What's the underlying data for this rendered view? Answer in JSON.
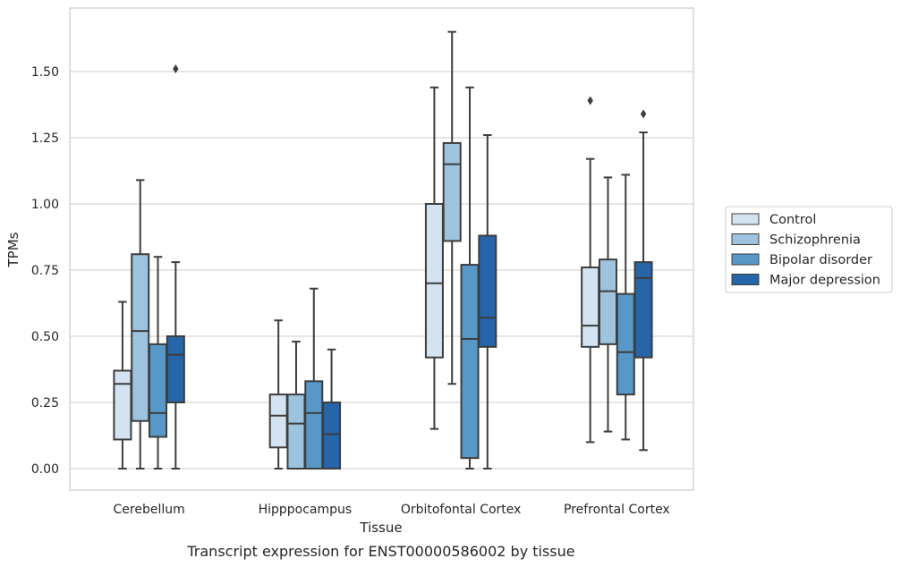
{
  "chart_data": {
    "type": "boxplot",
    "xlabel": "Tissue",
    "ylabel": "TPMs",
    "caption": "Transcript expression for ENST00000586002 by tissue",
    "ylim": [
      -0.08,
      1.75
    ],
    "yticks": [
      0.0,
      0.25,
      0.5,
      0.75,
      1.0,
      1.25,
      1.5
    ],
    "ytick_labels": [
      "0.00",
      "0.25",
      "0.50",
      "0.75",
      "1.00",
      "1.25",
      "1.50"
    ],
    "grid": "horizontal",
    "legend_placement": "right",
    "categories": [
      "Cerebellum",
      "Hipppocampus",
      "Orbitofontal Cortex",
      "Prefrontal Cortex"
    ],
    "series": [
      {
        "name": "Control",
        "color": "#d4e3f1",
        "boxes": [
          {
            "whislo": 0.0,
            "q1": 0.11,
            "med": 0.32,
            "q3": 0.37,
            "whishi": 0.63,
            "fliers": []
          },
          {
            "whislo": 0.0,
            "q1": 0.08,
            "med": 0.2,
            "q3": 0.28,
            "whishi": 0.56,
            "fliers": []
          },
          {
            "whislo": 0.15,
            "q1": 0.42,
            "med": 0.7,
            "q3": 1.0,
            "whishi": 1.44,
            "fliers": []
          },
          {
            "whislo": 0.1,
            "q1": 0.46,
            "med": 0.54,
            "q3": 0.76,
            "whishi": 1.17,
            "fliers": [
              1.39
            ]
          }
        ]
      },
      {
        "name": "Schizophrenia",
        "color": "#9dc3de",
        "boxes": [
          {
            "whislo": 0.0,
            "q1": 0.18,
            "med": 0.52,
            "q3": 0.81,
            "whishi": 1.09,
            "fliers": []
          },
          {
            "whislo": 0.0,
            "q1": 0.0,
            "med": 0.17,
            "q3": 0.28,
            "whishi": 0.48,
            "fliers": []
          },
          {
            "whislo": 0.32,
            "q1": 0.86,
            "med": 1.15,
            "q3": 1.23,
            "whishi": 1.65,
            "fliers": []
          },
          {
            "whislo": 0.14,
            "q1": 0.47,
            "med": 0.67,
            "q3": 0.79,
            "whishi": 1.1,
            "fliers": []
          }
        ]
      },
      {
        "name": "Bipolar disorder",
        "color": "#5898c8",
        "boxes": [
          {
            "whislo": 0.0,
            "q1": 0.12,
            "med": 0.21,
            "q3": 0.47,
            "whishi": 0.8,
            "fliers": []
          },
          {
            "whislo": 0.0,
            "q1": 0.0,
            "med": 0.21,
            "q3": 0.33,
            "whishi": 0.68,
            "fliers": []
          },
          {
            "whislo": 0.0,
            "q1": 0.04,
            "med": 0.49,
            "q3": 0.77,
            "whishi": 1.44,
            "fliers": []
          },
          {
            "whislo": 0.11,
            "q1": 0.28,
            "med": 0.44,
            "q3": 0.66,
            "whishi": 1.11,
            "fliers": []
          }
        ]
      },
      {
        "name": "Major depression",
        "color": "#2565a8",
        "boxes": [
          {
            "whislo": 0.0,
            "q1": 0.25,
            "med": 0.43,
            "q3": 0.5,
            "whishi": 0.78,
            "fliers": [
              1.51
            ]
          },
          {
            "whislo": 0.0,
            "q1": 0.0,
            "med": 0.13,
            "q3": 0.25,
            "whishi": 0.45,
            "fliers": []
          },
          {
            "whislo": 0.0,
            "q1": 0.46,
            "med": 0.57,
            "q3": 0.88,
            "whishi": 1.26,
            "fliers": []
          },
          {
            "whislo": 0.07,
            "q1": 0.42,
            "med": 0.72,
            "q3": 0.78,
            "whishi": 1.27,
            "fliers": [
              1.34
            ]
          }
        ]
      }
    ]
  }
}
